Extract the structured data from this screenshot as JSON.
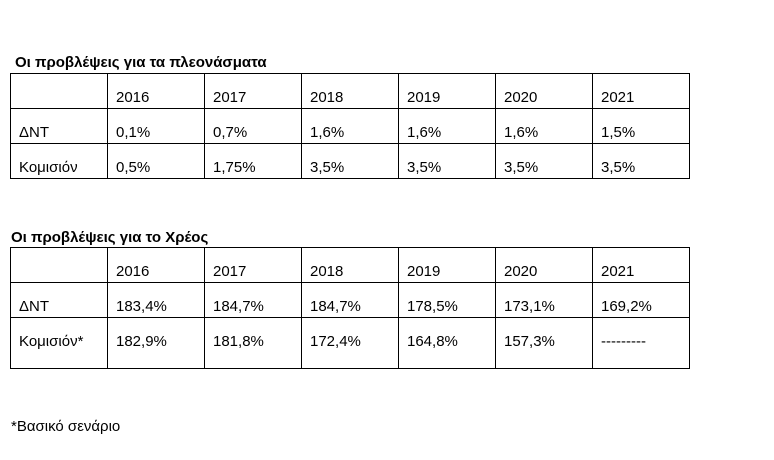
{
  "surplus": {
    "title": "Οι προβλέψεις για τα πλεονάσματα",
    "years": [
      "2016",
      "2017",
      "2018",
      "2019",
      "2020",
      "2021"
    ],
    "rows": [
      {
        "label": "ΔΝΤ",
        "values": [
          "0,1%",
          "0,7%",
          "1,6%",
          "1,6%",
          "1,6%",
          "1,5%"
        ]
      },
      {
        "label": "Κομισιόν",
        "values": [
          "0,5%",
          "1,75%",
          "3,5%",
          "3,5%",
          "3,5%",
          "3,5%"
        ]
      }
    ]
  },
  "debt": {
    "title": "Οι προβλέψεις για το Χρέος",
    "years": [
      "2016",
      "2017",
      "2018",
      "2019",
      "2020",
      "2021"
    ],
    "rows": [
      {
        "label": "ΔΝΤ",
        "values": [
          "183,4%",
          "184,7%",
          "184,7%",
          "178,5%",
          "173,1%",
          "169,2%"
        ]
      },
      {
        "label": "Κομισιόν*",
        "values": [
          "182,9%",
          "181,8%",
          "172,4%",
          "164,8%",
          "157,3%",
          "---------"
        ]
      }
    ]
  },
  "footnote": "*Βασικό σενάριο"
}
